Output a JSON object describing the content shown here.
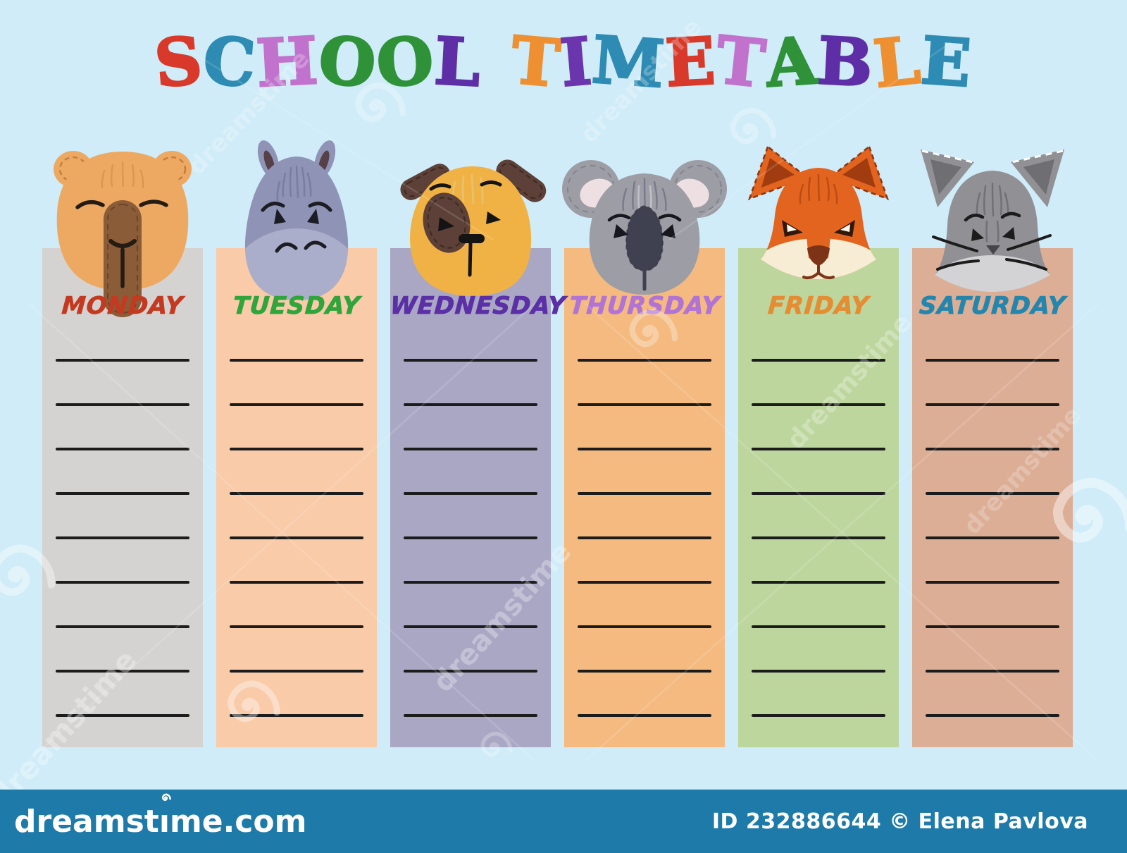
{
  "background_color": "#cfecf8",
  "title": {
    "text": "SCHOOL TIMETABLE",
    "letter_colors": [
      "#d8392a",
      "#2e8bb3",
      "#c172cd",
      "#2f9239",
      "#2f9239",
      "#5e2ea6",
      null,
      "#ee8f31",
      "#6b35ad",
      "#2e8bb3",
      "#d8392a",
      "#c172cd",
      "#2f9239",
      "#5e2ea6",
      "#ee8f31",
      "#2e8bb3"
    ]
  },
  "days": [
    {
      "label": "MONDAY",
      "label_color": "#c43a21",
      "column_color": "#d5d3d1",
      "animal": "bear",
      "palette": {
        "fur": "#eda961",
        "muzzle": "#8a5c38",
        "stitch": "#c07f3e",
        "muzzleStitch": "#6a452a",
        "texture": "#d6964a",
        "features": "#241b12"
      }
    },
    {
      "label": "TUESDAY",
      "label_color": "#2fa53c",
      "column_color": "#f9cba9",
      "animal": "hippo",
      "palette": {
        "fur": "#8f93b6",
        "muzzle": "#aaaecb",
        "earInner": "#574149",
        "texture": "#777c9f",
        "features": "#1c1c24"
      }
    },
    {
      "label": "WEDNESDAY",
      "label_color": "#5b2fa5",
      "column_color": "#a9a7c4",
      "animal": "dog",
      "palette": {
        "fur": "#f1b245",
        "ear": "#5d4037",
        "earStitch": "#3c2a22",
        "texture": "#e6c575",
        "features": "#141414"
      }
    },
    {
      "label": "THURSDAY",
      "label_color": "#b173d4",
      "column_color": "#f4ba80",
      "animal": "koala",
      "palette": {
        "fur": "#9d9da6",
        "earInner": "#eee0e2",
        "nose": "#3f4050",
        "stitch": "#83838d",
        "textureDark": "#77778a",
        "textureLight": "#c4c4cc",
        "features": "#17171d"
      }
    },
    {
      "label": "FRIDAY",
      "label_color": "#e58d33",
      "column_color": "#bdd69d",
      "animal": "fox",
      "palette": {
        "fur": "#e3641f",
        "earInner": "#a03c10",
        "earStitch": "#8a3510",
        "muzzle": "#f7ecd4",
        "nose": "#7d3416",
        "texture": "#b84a15",
        "features": "#30180c"
      }
    },
    {
      "label": "SATURDAY",
      "label_color": "#2486ad",
      "column_color": "#dcae96",
      "animal": "cat",
      "palette": {
        "fur": "#919195",
        "earInner": "#6f6f73",
        "muzzle": "#d3d3d5",
        "texture": "#6e6e72",
        "features": "#1c1c1c",
        "nose": "#46464a"
      }
    }
  ],
  "writing_lines_per_day": 9,
  "line_color": "#1c1c1c",
  "footer": {
    "bar_color": "#1d7aa9",
    "logo_text": "dreamstime.com",
    "credit_text": "ID 232886644 © Elena Pavlova",
    "text_color": "#ffffff"
  },
  "watermark": {
    "text": "dreamstime"
  }
}
